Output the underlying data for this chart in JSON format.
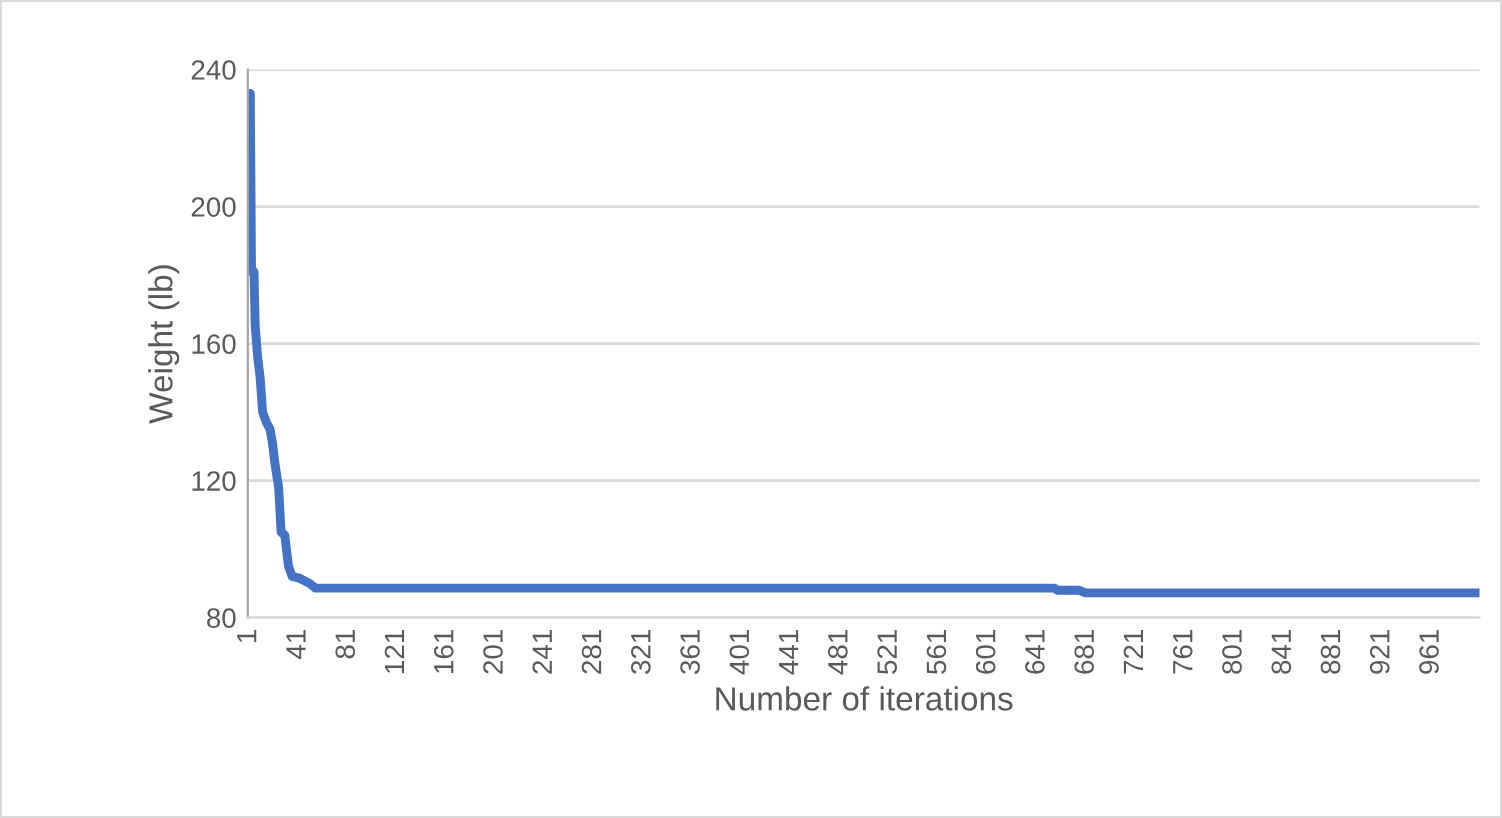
{
  "chart_data": {
    "type": "line",
    "xlabel": "Number of iterations",
    "ylabel": "Weight (lb)",
    "x": [
      1,
      2,
      3,
      5,
      6,
      8,
      10,
      12,
      15,
      18,
      20,
      22,
      25,
      27,
      30,
      33,
      36,
      42,
      50,
      55,
      655,
      657,
      675,
      680,
      1000
    ],
    "series": [
      {
        "color": "#4472c4",
        "values": [
          233,
          233,
          181,
          181,
          165,
          156,
          150,
          140,
          137,
          135,
          131,
          125,
          118,
          105,
          104,
          95,
          92,
          91.5,
          90,
          88.6,
          88.6,
          88,
          88,
          87.2,
          87.2
        ]
      }
    ],
    "xlim": [
      0,
      1000
    ],
    "xticks": [
      1,
      41,
      81,
      121,
      161,
      201,
      241,
      281,
      321,
      361,
      401,
      441,
      481,
      521,
      561,
      601,
      641,
      681,
      721,
      761,
      801,
      841,
      881,
      921,
      961
    ],
    "ylim": [
      80,
      240
    ],
    "yticks": [
      80,
      120,
      160,
      200,
      240
    ],
    "grid": "y",
    "marker": "none",
    "line_style": "solid"
  }
}
